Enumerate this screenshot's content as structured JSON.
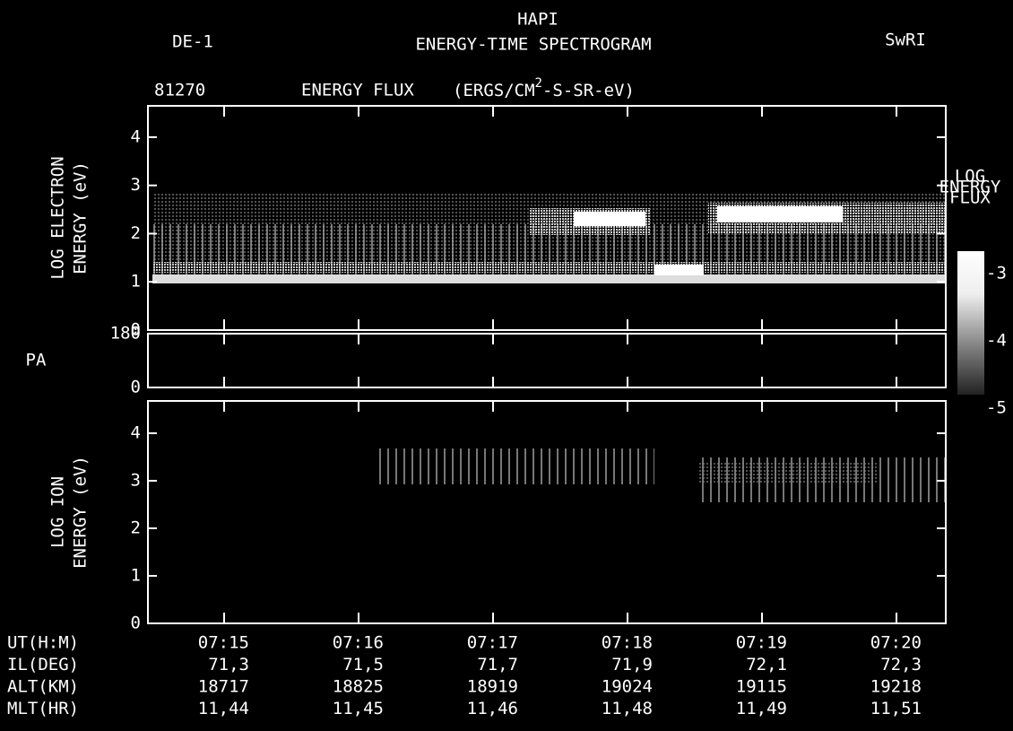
{
  "header": {
    "left": "DE-1",
    "title": "HAPI",
    "subtitle": "ENERGY-TIME SPECTROGRAM",
    "right": "SwRI",
    "date": "81270",
    "quantity": "ENERGY FLUX",
    "units_pre": "(ERGS/CM",
    "units_sup": "2",
    "units_post": "-S-SR-eV)"
  },
  "panels": [
    {
      "label": [
        "LOG ELECTRON",
        "ENERGY  (eV)"
      ],
      "ylim": [
        0,
        4.65
      ],
      "yticks": [
        0,
        1,
        2,
        3,
        4
      ]
    },
    {
      "label": [
        "PA"
      ],
      "ylim": [
        0,
        180
      ],
      "yticks": [
        0,
        180
      ]
    },
    {
      "label": [
        "LOG ION",
        "ENERGY  (eV)"
      ],
      "ylim": [
        0,
        4.68
      ],
      "yticks": [
        0,
        1,
        2,
        3,
        4
      ]
    }
  ],
  "colorbar": {
    "label": [
      "LOG",
      "ENERGY",
      "FLUX"
    ],
    "clim": [
      -4.8,
      -2.67
    ],
    "ticks": [
      -3,
      -4,
      -5
    ]
  },
  "ephemeris": {
    "rows": [
      {
        "label": "UT(H:M)",
        "values": [
          "07:15",
          "07:16",
          "07:17",
          "07:18",
          "07:19",
          "07:20"
        ]
      },
      {
        "label": "IL(DEG)",
        "values": [
          "71,3",
          "71,5",
          "71,7",
          "71,9",
          "72,1",
          "72,3"
        ]
      },
      {
        "label": "ALT(KM)",
        "values": [
          "18717",
          "18825",
          "18919",
          "19024",
          "19115",
          "19218"
        ]
      },
      {
        "label": "MLT(HR)",
        "values": [
          "11,44",
          "11,45",
          "11,46",
          "11,48",
          "11,49",
          "11,51"
        ]
      }
    ]
  }
}
